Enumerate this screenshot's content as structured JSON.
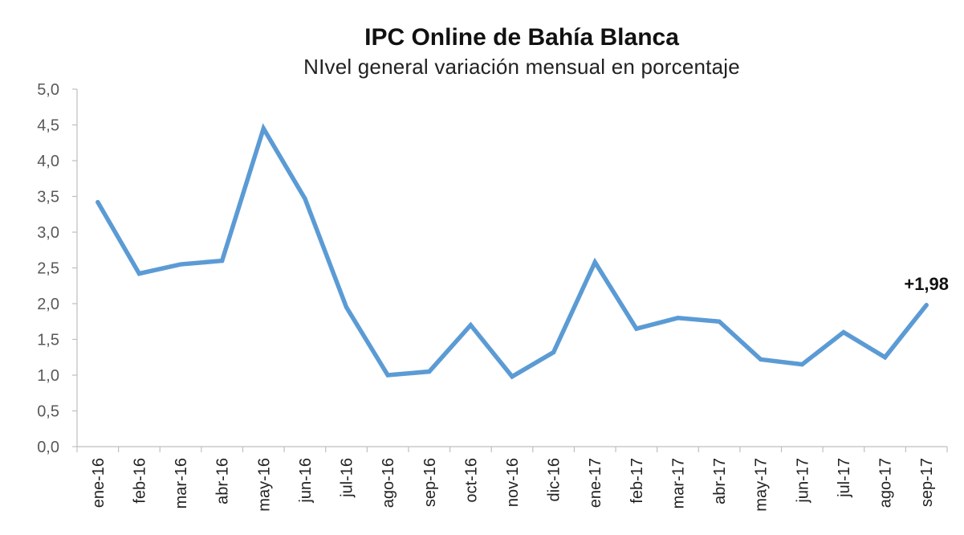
{
  "chart_data": {
    "type": "line",
    "title": "IPC Online de Bahía Blanca",
    "subtitle": "NIvel general variación mensual en porcentaje",
    "xlabel": "",
    "ylabel": "",
    "ylim": [
      0,
      5
    ],
    "yticks": [
      "0,0",
      "0,5",
      "1,0",
      "1,5",
      "2,0",
      "2,5",
      "3,0",
      "3,5",
      "4,0",
      "4,5",
      "5,0"
    ],
    "grid": false,
    "legend": "none",
    "categories": [
      "ene-16",
      "feb-16",
      "mar-16",
      "abr-16",
      "may-16",
      "jun-16",
      "jul-16",
      "ago-16",
      "sep-16",
      "oct-16",
      "nov-16",
      "dic-16",
      "ene-17",
      "feb-17",
      "mar-17",
      "abr-17",
      "may-17",
      "jun-17",
      "jul-17",
      "ago-17",
      "sep-17"
    ],
    "series": [
      {
        "color": "#5b9bd5",
        "values": [
          3.42,
          2.42,
          2.55,
          2.6,
          4.45,
          3.47,
          1.95,
          1.0,
          1.05,
          1.7,
          0.98,
          1.32,
          2.58,
          1.65,
          1.8,
          1.75,
          1.22,
          1.15,
          1.6,
          1.25,
          1.98
        ]
      }
    ],
    "annotation": {
      "text": "+1,98",
      "category": "sep-17",
      "value": 1.98
    }
  }
}
